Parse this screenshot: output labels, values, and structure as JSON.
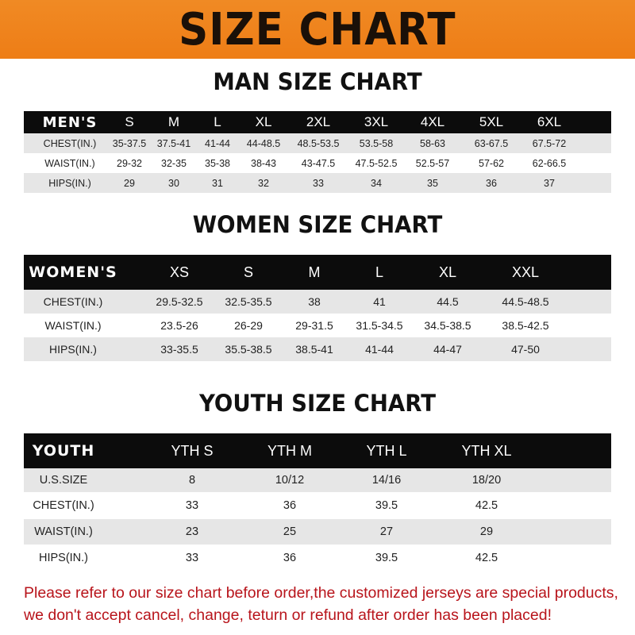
{
  "title": "SIZE CHART",
  "notice": [
    "Please refer to our size chart before order,the customized jerseys are special products,",
    "we don't accept cancel, change, teturn or refund after order has been placed!"
  ],
  "colors": {
    "banner": "#ef8420",
    "header_row": "#0c0c0c",
    "stripe": "#e6e6e6",
    "notice": "#b8141b"
  },
  "tables": [
    {
      "title": "MAN SIZE CHART",
      "header": [
        "MEN'S",
        "S",
        "M",
        "L",
        "XL",
        "2XL",
        "3XL",
        "4XL",
        "5XL",
        "6XL"
      ],
      "rows": [
        [
          "CHEST(IN.)",
          "35-37.5",
          "37.5-41",
          "41-44",
          "44-48.5",
          "48.5-53.5",
          "53.5-58",
          "58-63",
          "63-67.5",
          "67.5-72"
        ],
        [
          "WAIST(IN.)",
          "29-32",
          "32-35",
          "35-38",
          "38-43",
          "43-47.5",
          "47.5-52.5",
          "52.5-57",
          "57-62",
          "62-66.5"
        ],
        [
          "HIPS(IN.)",
          "29",
          "30",
          "31",
          "32",
          "33",
          "34",
          "35",
          "36",
          "37"
        ]
      ]
    },
    {
      "title": "WOMEN SIZE CHART",
      "header": [
        "WOMEN'S",
        "XS",
        "S",
        "M",
        "L",
        "XL",
        "XXL"
      ],
      "rows": [
        [
          "CHEST(IN.)",
          "29.5-32.5",
          "32.5-35.5",
          "38",
          "41",
          "44.5",
          "44.5-48.5"
        ],
        [
          "WAIST(IN.)",
          "23.5-26",
          "26-29",
          "29-31.5",
          "31.5-34.5",
          "34.5-38.5",
          "38.5-42.5"
        ],
        [
          "HIPS(IN.)",
          "33-35.5",
          "35.5-38.5",
          "38.5-41",
          "41-44",
          "44-47",
          "47-50"
        ]
      ]
    },
    {
      "title": "YOUTH SIZE CHART",
      "header": [
        "YOUTH",
        "YTH S",
        "YTH M",
        "YTH L",
        "YTH XL"
      ],
      "rows": [
        [
          "U.S.SIZE",
          "8",
          "10/12",
          "14/16",
          "18/20"
        ],
        [
          "CHEST(IN.)",
          "33",
          "36",
          "39.5",
          "42.5"
        ],
        [
          "WAIST(IN.)",
          "23",
          "25",
          "27",
          "29"
        ],
        [
          "HIPS(IN.)",
          "33",
          "36",
          "39.5",
          "42.5"
        ]
      ]
    }
  ]
}
